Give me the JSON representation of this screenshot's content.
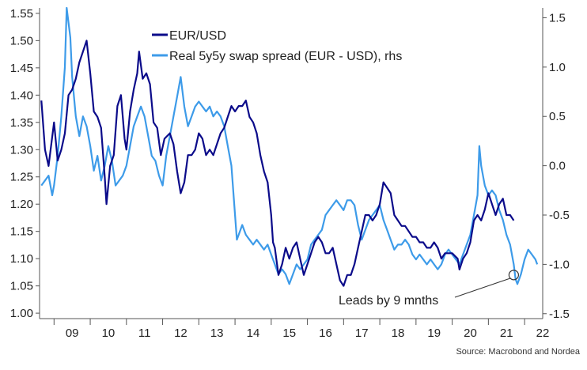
{
  "chart_data": {
    "type": "line",
    "title": "",
    "source": "Source: Macrobond and Nordea",
    "annotation": "Leads by 9 mnths",
    "colors": {
      "eurusd": "#0b0b8a",
      "spread": "#3d9be9",
      "axis": "#555555",
      "annot": "#333333"
    },
    "x_axis": {
      "labels": [
        "09",
        "10",
        "11",
        "12",
        "13",
        "14",
        "15",
        "16",
        "17",
        "18",
        "19",
        "20",
        "21",
        "22"
      ],
      "range": [
        2008.6,
        2022.5
      ]
    },
    "y_left": {
      "ylim": [
        0.99,
        1.56
      ],
      "ticks": [
        1.0,
        1.05,
        1.1,
        1.15,
        1.2,
        1.25,
        1.3,
        1.35,
        1.4,
        1.45,
        1.5,
        1.55
      ],
      "tick_labels": [
        "1.00",
        "1.05",
        "1.10",
        "1.15",
        "1.20",
        "1.25",
        "1.30",
        "1.35",
        "1.40",
        "1.45",
        "1.50",
        "1.55"
      ]
    },
    "y_right": {
      "ylim": [
        -1.55,
        1.6
      ],
      "ticks": [
        -1.5,
        -1.0,
        -0.5,
        0.0,
        0.5,
        1.0,
        1.5
      ],
      "tick_labels": [
        "-1.5",
        "-1.0",
        "-0.5",
        "0.0",
        "0.5",
        "1.0",
        "1.5"
      ]
    },
    "series": [
      {
        "name": "EUR/USD",
        "axis": "left",
        "points": [
          [
            2008.65,
            1.39
          ],
          [
            2008.75,
            1.3
          ],
          [
            2008.85,
            1.27
          ],
          [
            2009.0,
            1.35
          ],
          [
            2009.1,
            1.28
          ],
          [
            2009.2,
            1.3
          ],
          [
            2009.3,
            1.33
          ],
          [
            2009.4,
            1.4
          ],
          [
            2009.5,
            1.41
          ],
          [
            2009.6,
            1.43
          ],
          [
            2009.7,
            1.46
          ],
          [
            2009.8,
            1.48
          ],
          [
            2009.9,
            1.5
          ],
          [
            2010.0,
            1.44
          ],
          [
            2010.1,
            1.37
          ],
          [
            2010.2,
            1.36
          ],
          [
            2010.3,
            1.34
          ],
          [
            2010.4,
            1.25
          ],
          [
            2010.45,
            1.2
          ],
          [
            2010.55,
            1.27
          ],
          [
            2010.65,
            1.29
          ],
          [
            2010.75,
            1.38
          ],
          [
            2010.85,
            1.4
          ],
          [
            2010.95,
            1.32
          ],
          [
            2011.0,
            1.3
          ],
          [
            2011.1,
            1.37
          ],
          [
            2011.2,
            1.41
          ],
          [
            2011.3,
            1.44
          ],
          [
            2011.35,
            1.48
          ],
          [
            2011.45,
            1.43
          ],
          [
            2011.55,
            1.44
          ],
          [
            2011.65,
            1.42
          ],
          [
            2011.75,
            1.35
          ],
          [
            2011.85,
            1.34
          ],
          [
            2011.95,
            1.29
          ],
          [
            2012.05,
            1.32
          ],
          [
            2012.2,
            1.33
          ],
          [
            2012.3,
            1.31
          ],
          [
            2012.4,
            1.26
          ],
          [
            2012.5,
            1.22
          ],
          [
            2012.6,
            1.24
          ],
          [
            2012.7,
            1.29
          ],
          [
            2012.8,
            1.29
          ],
          [
            2012.9,
            1.3
          ],
          [
            2013.0,
            1.33
          ],
          [
            2013.1,
            1.32
          ],
          [
            2013.2,
            1.29
          ],
          [
            2013.3,
            1.3
          ],
          [
            2013.4,
            1.29
          ],
          [
            2013.5,
            1.31
          ],
          [
            2013.6,
            1.33
          ],
          [
            2013.7,
            1.34
          ],
          [
            2013.8,
            1.36
          ],
          [
            2013.9,
            1.38
          ],
          [
            2014.0,
            1.37
          ],
          [
            2014.1,
            1.38
          ],
          [
            2014.2,
            1.38
          ],
          [
            2014.3,
            1.39
          ],
          [
            2014.4,
            1.36
          ],
          [
            2014.5,
            1.35
          ],
          [
            2014.6,
            1.33
          ],
          [
            2014.7,
            1.29
          ],
          [
            2014.8,
            1.26
          ],
          [
            2014.9,
            1.24
          ],
          [
            2015.0,
            1.18
          ],
          [
            2015.05,
            1.13
          ],
          [
            2015.1,
            1.12
          ],
          [
            2015.2,
            1.07
          ],
          [
            2015.3,
            1.09
          ],
          [
            2015.4,
            1.12
          ],
          [
            2015.5,
            1.1
          ],
          [
            2015.6,
            1.12
          ],
          [
            2015.7,
            1.13
          ],
          [
            2015.8,
            1.1
          ],
          [
            2015.9,
            1.07
          ],
          [
            2016.0,
            1.09
          ],
          [
            2016.1,
            1.11
          ],
          [
            2016.2,
            1.13
          ],
          [
            2016.3,
            1.14
          ],
          [
            2016.4,
            1.13
          ],
          [
            2016.5,
            1.11
          ],
          [
            2016.6,
            1.11
          ],
          [
            2016.7,
            1.12
          ],
          [
            2016.8,
            1.09
          ],
          [
            2016.9,
            1.06
          ],
          [
            2017.0,
            1.05
          ],
          [
            2017.1,
            1.07
          ],
          [
            2017.2,
            1.07
          ],
          [
            2017.3,
            1.09
          ],
          [
            2017.4,
            1.12
          ],
          [
            2017.5,
            1.15
          ],
          [
            2017.6,
            1.18
          ],
          [
            2017.7,
            1.18
          ],
          [
            2017.8,
            1.17
          ],
          [
            2017.9,
            1.18
          ],
          [
            2018.0,
            1.2
          ],
          [
            2018.1,
            1.24
          ],
          [
            2018.2,
            1.23
          ],
          [
            2018.3,
            1.22
          ],
          [
            2018.4,
            1.18
          ],
          [
            2018.5,
            1.17
          ],
          [
            2018.6,
            1.16
          ],
          [
            2018.7,
            1.16
          ],
          [
            2018.8,
            1.15
          ],
          [
            2018.9,
            1.14
          ],
          [
            2019.0,
            1.14
          ],
          [
            2019.1,
            1.13
          ],
          [
            2019.2,
            1.13
          ],
          [
            2019.3,
            1.12
          ],
          [
            2019.4,
            1.12
          ],
          [
            2019.5,
            1.13
          ],
          [
            2019.6,
            1.12
          ],
          [
            2019.7,
            1.1
          ],
          [
            2019.8,
            1.11
          ],
          [
            2019.9,
            1.11
          ],
          [
            2020.0,
            1.11
          ],
          [
            2020.15,
            1.1
          ],
          [
            2020.2,
            1.08
          ],
          [
            2020.3,
            1.1
          ],
          [
            2020.4,
            1.11
          ],
          [
            2020.5,
            1.13
          ],
          [
            2020.6,
            1.17
          ],
          [
            2020.7,
            1.18
          ],
          [
            2020.8,
            1.17
          ],
          [
            2020.9,
            1.19
          ],
          [
            2021.0,
            1.22
          ],
          [
            2021.1,
            1.2
          ],
          [
            2021.2,
            1.18
          ],
          [
            2021.3,
            1.2
          ],
          [
            2021.4,
            1.21
          ],
          [
            2021.5,
            1.18
          ],
          [
            2021.6,
            1.18
          ],
          [
            2021.7,
            1.17
          ]
        ]
      },
      {
        "name": "Real 5y5y swap spread (EUR - USD), rhs",
        "axis": "right",
        "points": [
          [
            2008.65,
            -0.2
          ],
          [
            2008.75,
            -0.15
          ],
          [
            2008.85,
            -0.1
          ],
          [
            2008.95,
            -0.3
          ],
          [
            2009.0,
            -0.2
          ],
          [
            2009.1,
            0.1
          ],
          [
            2009.2,
            0.5
          ],
          [
            2009.3,
            1.0
          ],
          [
            2009.35,
            1.6
          ],
          [
            2009.45,
            1.3
          ],
          [
            2009.5,
            0.9
          ],
          [
            2009.6,
            0.5
          ],
          [
            2009.7,
            0.3
          ],
          [
            2009.8,
            0.5
          ],
          [
            2009.9,
            0.4
          ],
          [
            2010.0,
            0.2
          ],
          [
            2010.1,
            -0.05
          ],
          [
            2010.2,
            0.1
          ],
          [
            2010.3,
            -0.15
          ],
          [
            2010.4,
            0.0
          ],
          [
            2010.5,
            0.2
          ],
          [
            2010.6,
            0.05
          ],
          [
            2010.7,
            -0.2
          ],
          [
            2010.8,
            -0.15
          ],
          [
            2010.9,
            -0.1
          ],
          [
            2011.0,
            0.0
          ],
          [
            2011.1,
            0.2
          ],
          [
            2011.2,
            0.4
          ],
          [
            2011.3,
            0.5
          ],
          [
            2011.4,
            0.6
          ],
          [
            2011.5,
            0.5
          ],
          [
            2011.6,
            0.3
          ],
          [
            2011.7,
            0.1
          ],
          [
            2011.8,
            0.05
          ],
          [
            2011.9,
            -0.1
          ],
          [
            2012.0,
            -0.2
          ],
          [
            2012.1,
            0.1
          ],
          [
            2012.2,
            0.3
          ],
          [
            2012.3,
            0.5
          ],
          [
            2012.4,
            0.7
          ],
          [
            2012.5,
            0.9
          ],
          [
            2012.6,
            0.6
          ],
          [
            2012.7,
            0.4
          ],
          [
            2012.8,
            0.5
          ],
          [
            2012.9,
            0.6
          ],
          [
            2013.0,
            0.65
          ],
          [
            2013.1,
            0.6
          ],
          [
            2013.2,
            0.55
          ],
          [
            2013.3,
            0.6
          ],
          [
            2013.4,
            0.5
          ],
          [
            2013.5,
            0.55
          ],
          [
            2013.6,
            0.5
          ],
          [
            2013.7,
            0.4
          ],
          [
            2013.8,
            0.2
          ],
          [
            2013.9,
            0.0
          ],
          [
            2014.0,
            -0.5
          ],
          [
            2014.05,
            -0.75
          ],
          [
            2014.1,
            -0.7
          ],
          [
            2014.2,
            -0.6
          ],
          [
            2014.3,
            -0.7
          ],
          [
            2014.4,
            -0.75
          ],
          [
            2014.5,
            -0.8
          ],
          [
            2014.6,
            -0.75
          ],
          [
            2014.7,
            -0.8
          ],
          [
            2014.8,
            -0.85
          ],
          [
            2014.9,
            -0.8
          ],
          [
            2015.0,
            -0.9
          ],
          [
            2015.1,
            -1.0
          ],
          [
            2015.2,
            -1.1
          ],
          [
            2015.3,
            -1.05
          ],
          [
            2015.4,
            -1.1
          ],
          [
            2015.5,
            -1.2
          ],
          [
            2015.6,
            -1.1
          ],
          [
            2015.7,
            -1.0
          ],
          [
            2015.8,
            -1.05
          ],
          [
            2015.9,
            -1.0
          ],
          [
            2016.0,
            -0.95
          ],
          [
            2016.1,
            -0.8
          ],
          [
            2016.2,
            -0.75
          ],
          [
            2016.3,
            -0.7
          ],
          [
            2016.4,
            -0.65
          ],
          [
            2016.5,
            -0.5
          ],
          [
            2016.6,
            -0.45
          ],
          [
            2016.7,
            -0.4
          ],
          [
            2016.8,
            -0.35
          ],
          [
            2016.9,
            -0.4
          ],
          [
            2017.0,
            -0.45
          ],
          [
            2017.1,
            -0.35
          ],
          [
            2017.2,
            -0.35
          ],
          [
            2017.3,
            -0.4
          ],
          [
            2017.4,
            -0.6
          ],
          [
            2017.5,
            -0.75
          ],
          [
            2017.6,
            -0.65
          ],
          [
            2017.7,
            -0.55
          ],
          [
            2017.8,
            -0.5
          ],
          [
            2017.9,
            -0.45
          ],
          [
            2018.0,
            -0.4
          ],
          [
            2018.1,
            -0.55
          ],
          [
            2018.2,
            -0.65
          ],
          [
            2018.3,
            -0.75
          ],
          [
            2018.4,
            -0.85
          ],
          [
            2018.5,
            -0.8
          ],
          [
            2018.6,
            -0.8
          ],
          [
            2018.7,
            -0.75
          ],
          [
            2018.8,
            -0.8
          ],
          [
            2018.9,
            -0.9
          ],
          [
            2019.0,
            -0.95
          ],
          [
            2019.1,
            -0.9
          ],
          [
            2019.2,
            -0.95
          ],
          [
            2019.3,
            -1.0
          ],
          [
            2019.4,
            -0.95
          ],
          [
            2019.5,
            -1.0
          ],
          [
            2019.6,
            -1.05
          ],
          [
            2019.7,
            -1.0
          ],
          [
            2019.8,
            -0.9
          ],
          [
            2019.9,
            -0.85
          ],
          [
            2020.0,
            -0.9
          ],
          [
            2020.1,
            -0.95
          ],
          [
            2020.2,
            -1.0
          ],
          [
            2020.3,
            -0.9
          ],
          [
            2020.4,
            -0.8
          ],
          [
            2020.5,
            -0.7
          ],
          [
            2020.6,
            -0.5
          ],
          [
            2020.7,
            -0.3
          ],
          [
            2020.75,
            0.2
          ],
          [
            2020.8,
            0.0
          ],
          [
            2020.9,
            -0.2
          ],
          [
            2021.0,
            -0.3
          ],
          [
            2021.1,
            -0.25
          ],
          [
            2021.2,
            -0.3
          ],
          [
            2021.3,
            -0.45
          ],
          [
            2021.4,
            -0.55
          ],
          [
            2021.5,
            -0.7
          ],
          [
            2021.6,
            -0.8
          ],
          [
            2021.7,
            -1.0
          ],
          [
            2021.75,
            -1.15
          ],
          [
            2021.8,
            -1.2
          ],
          [
            2021.9,
            -1.1
          ],
          [
            2022.0,
            -0.95
          ],
          [
            2022.1,
            -0.85
          ],
          [
            2022.2,
            -0.9
          ],
          [
            2022.3,
            -0.95
          ],
          [
            2022.35,
            -1.0
          ]
        ]
      }
    ],
    "marker": {
      "x": 2021.7,
      "axis": "left",
      "y": 1.07
    },
    "legend_placement": "top-center",
    "grid": false
  }
}
